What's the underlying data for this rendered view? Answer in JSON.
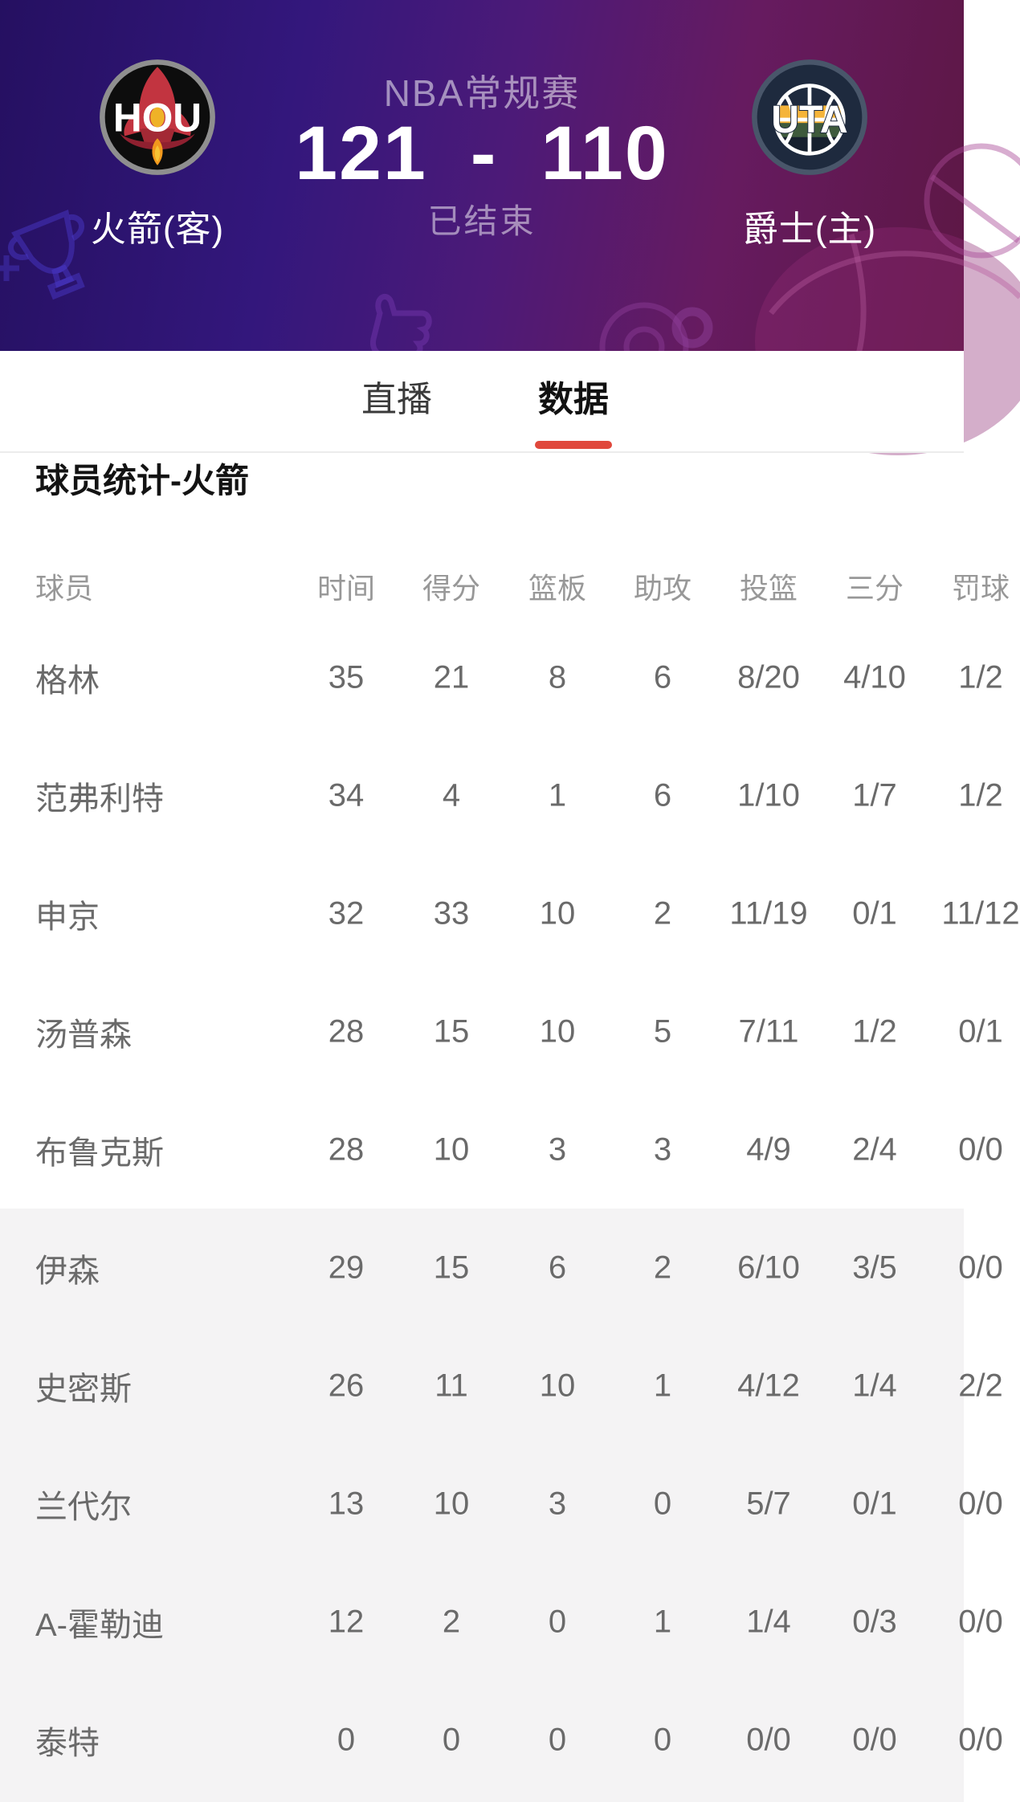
{
  "header": {
    "competition": "NBA常规赛",
    "score_away": "121",
    "score_dash": "-",
    "score_home": "110",
    "status": "已结束",
    "away_team": {
      "abbr": "HOU",
      "name": "火箭(客)"
    },
    "home_team": {
      "abbr": "UTA",
      "name": "爵士(主)"
    }
  },
  "tabs": [
    {
      "label": "直播",
      "active": false
    },
    {
      "label": "数据",
      "active": true
    }
  ],
  "section": {
    "title": "球员统计-火箭"
  },
  "table": {
    "columns": [
      "球员",
      "时间",
      "得分",
      "篮板",
      "助攻",
      "投篮",
      "三分",
      "罚球"
    ],
    "rows": [
      {
        "name": "格林",
        "values": [
          "35",
          "21",
          "8",
          "6",
          "8/20",
          "4/10",
          "1/2"
        ]
      },
      {
        "name": "范弗利特",
        "values": [
          "34",
          "4",
          "1",
          "6",
          "1/10",
          "1/7",
          "1/2"
        ]
      },
      {
        "name": "申京",
        "values": [
          "32",
          "33",
          "10",
          "2",
          "11/19",
          "0/1",
          "11/12"
        ]
      },
      {
        "name": "汤普森",
        "values": [
          "28",
          "15",
          "10",
          "5",
          "7/11",
          "1/2",
          "0/1"
        ]
      },
      {
        "name": "布鲁克斯",
        "values": [
          "28",
          "10",
          "3",
          "3",
          "4/9",
          "2/4",
          "0/0"
        ]
      },
      {
        "name": "伊森",
        "values": [
          "29",
          "15",
          "6",
          "2",
          "6/10",
          "3/5",
          "0/0"
        ]
      },
      {
        "name": "史密斯",
        "values": [
          "26",
          "11",
          "10",
          "1",
          "4/12",
          "1/4",
          "2/2"
        ]
      },
      {
        "name": "兰代尔",
        "values": [
          "13",
          "10",
          "3",
          "0",
          "5/7",
          "0/1",
          "0/0"
        ]
      },
      {
        "name": "A-霍勒迪",
        "values": [
          "12",
          "2",
          "0",
          "1",
          "1/4",
          "0/3",
          "0/0"
        ]
      },
      {
        "name": "泰特",
        "values": [
          "0",
          "0",
          "0",
          "0",
          "0/0",
          "0/0",
          "0/0"
        ]
      }
    ]
  },
  "colors": {
    "header_gradient_left": "#251061",
    "header_gradient_right": "#5d1744",
    "tab_underline_red": "#e0483c",
    "bench_row_bg": "#f4f3f4",
    "cell_text": "#6a6a6a",
    "header_text": "#989898"
  }
}
